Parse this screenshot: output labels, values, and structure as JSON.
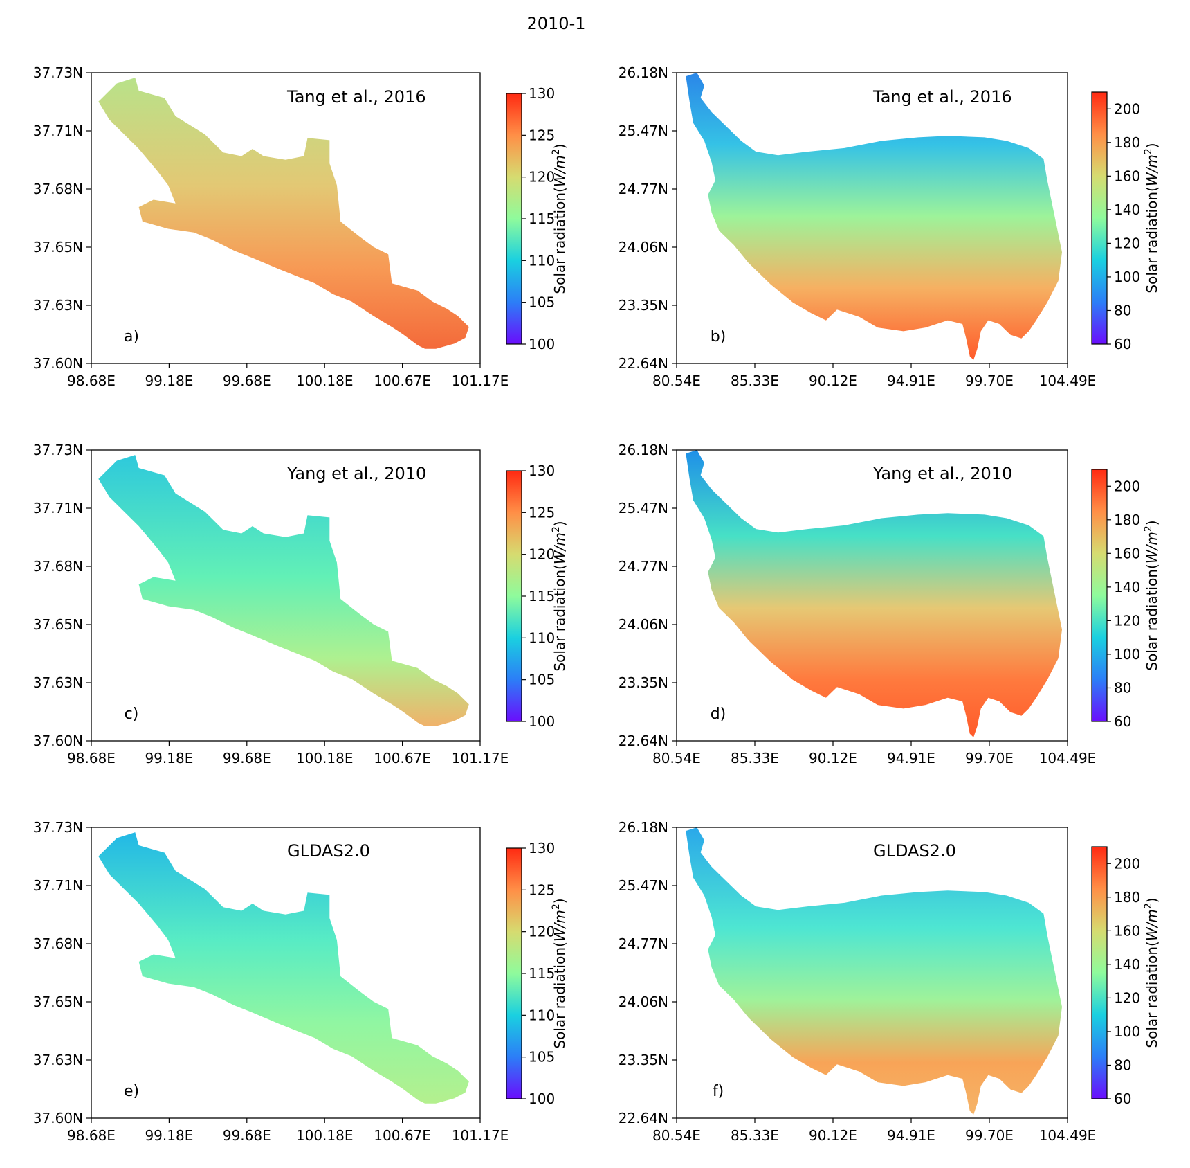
{
  "figure": {
    "title": "2010-1",
    "cbar_label": "Solar radiation(",
    "cbar_unit": "W/m",
    "cbar_unit_exp": "2",
    "cbar_close": ")",
    "colormap": [
      "#6a0dfc",
      "#2c7ef7",
      "#1ad0e0",
      "#8ffb9c",
      "#d6db70",
      "#ff8f47",
      "#ff2a12"
    ]
  },
  "panels": [
    {
      "id": "a",
      "letter": "a)",
      "source": "Tang et al., 2016",
      "xticks": [
        "98.68E",
        "99.18E",
        "99.68E",
        "100.18E",
        "100.67E",
        "101.17E"
      ],
      "yticks": [
        "37.60N",
        "37.63N",
        "37.65N",
        "37.68N",
        "37.71N",
        "37.73N"
      ],
      "cbar_ticks": [
        100,
        105,
        110,
        115,
        120,
        125,
        130
      ],
      "cbar_range": [
        100,
        130
      ]
    },
    {
      "id": "b",
      "letter": "b)",
      "source": "Tang et al., 2016",
      "xticks": [
        "80.54E",
        "85.33E",
        "90.12E",
        "94.91E",
        "99.70E",
        "104.49E"
      ],
      "yticks": [
        "22.64N",
        "23.35N",
        "24.06N",
        "24.77N",
        "25.47N",
        "26.18N"
      ],
      "cbar_ticks": [
        60,
        80,
        100,
        120,
        140,
        160,
        180,
        200
      ],
      "cbar_range": [
        60,
        210
      ]
    },
    {
      "id": "c",
      "letter": "c)",
      "source": "Yang et al., 2010",
      "xticks": [
        "98.68E",
        "99.18E",
        "99.68E",
        "100.18E",
        "100.67E",
        "101.17E"
      ],
      "yticks": [
        "37.60N",
        "37.63N",
        "37.65N",
        "37.68N",
        "37.71N",
        "37.73N"
      ],
      "cbar_ticks": [
        100,
        105,
        110,
        115,
        120,
        125,
        130
      ],
      "cbar_range": [
        100,
        130
      ]
    },
    {
      "id": "d",
      "letter": "d)",
      "source": "Yang et al., 2010",
      "xticks": [
        "80.54E",
        "85.33E",
        "90.12E",
        "94.91E",
        "99.70E",
        "104.49E"
      ],
      "yticks": [
        "22.64N",
        "23.35N",
        "24.06N",
        "24.77N",
        "25.47N",
        "26.18N"
      ],
      "cbar_ticks": [
        60,
        80,
        100,
        120,
        140,
        160,
        180,
        200
      ],
      "cbar_range": [
        60,
        210
      ]
    },
    {
      "id": "e",
      "letter": "e)",
      "source": "GLDAS2.0",
      "xticks": [
        "98.68E",
        "99.18E",
        "99.68E",
        "100.18E",
        "100.67E",
        "101.17E"
      ],
      "yticks": [
        "37.60N",
        "37.63N",
        "37.65N",
        "37.68N",
        "37.71N",
        "37.73N"
      ],
      "cbar_ticks": [
        100,
        105,
        110,
        115,
        120,
        125,
        130
      ],
      "cbar_range": [
        100,
        130
      ]
    },
    {
      "id": "f",
      "letter": "f)",
      "source": "GLDAS2.0",
      "xticks": [
        "80.54E",
        "85.33E",
        "90.12E",
        "94.91E",
        "99.70E",
        "104.49E"
      ],
      "yticks": [
        "22.64N",
        "23.35N",
        "24.06N",
        "24.77N",
        "25.47N",
        "26.18N"
      ],
      "cbar_ticks": [
        60,
        80,
        100,
        120,
        140,
        160,
        180,
        200
      ],
      "cbar_range": [
        60,
        210
      ]
    }
  ]
}
